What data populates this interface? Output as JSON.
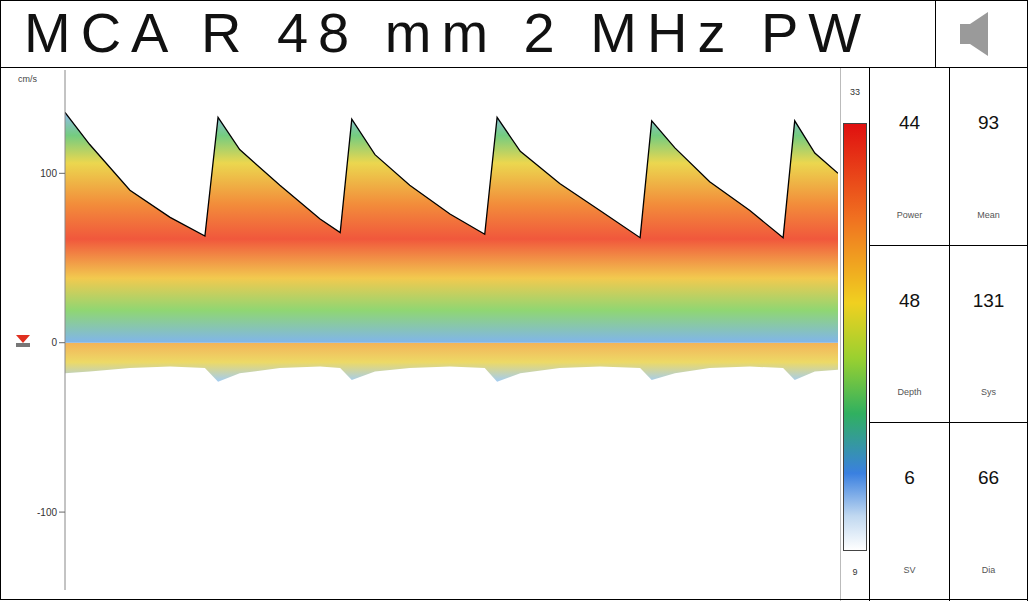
{
  "chart_data": {
    "type": "area",
    "title": "MCA R 48 mm 2 MHz PW",
    "y_label": "cm/s",
    "x": [
      0,
      3.2,
      8.4,
      13.6,
      18.1,
      19.8,
      22.6,
      27.8,
      33,
      35.6,
      37.1,
      40.1,
      44.6,
      49.8,
      54.3,
      55.9,
      58.9,
      64,
      69.2,
      74.4,
      75.9,
      78.9,
      83.4,
      88.6,
      92.9,
      94.4,
      97,
      100
    ],
    "xlim": [
      0,
      100
    ],
    "ylim": [
      -146,
      161
    ],
    "yticks": [
      -100,
      0,
      100
    ],
    "tick_labels": "y",
    "series": [
      {
        "type": "area",
        "color": "#000000",
        "values": [
          136,
          117,
          90,
          74,
          63,
          133,
          114,
          93,
          73,
          65,
          132,
          111,
          93,
          76,
          64,
          133,
          113,
          94,
          78,
          62,
          131,
          115,
          95,
          78,
          62,
          131,
          112,
          100
        ]
      },
      {
        "type": "area",
        "values": [
          -18,
          -17,
          -15,
          -14,
          -15,
          -23,
          -18,
          -15,
          -14,
          -15,
          -22,
          -17,
          -15,
          -14,
          -15,
          -23,
          -18,
          -15,
          -14,
          -15,
          -22,
          -18,
          -15,
          -14,
          -15,
          -22,
          -17,
          -16
        ]
      }
    ],
    "color_bar": {
      "range": [
        9,
        33
      ],
      "ticks": [
        9,
        33
      ]
    },
    "readouts": [
      {
        "label": "Power",
        "value": 44
      },
      {
        "label": "Mean",
        "value": 93
      },
      {
        "label": "Depth",
        "value": 48
      },
      {
        "label": "Sys",
        "value": 131
      },
      {
        "label": "SV",
        "value": 6
      },
      {
        "label": "Dia",
        "value": 66
      }
    ]
  }
}
